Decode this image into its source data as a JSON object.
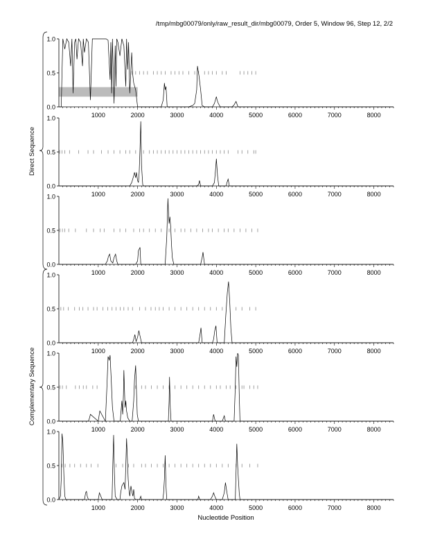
{
  "header": {
    "title": "/tmp/mbg00079/only/raw_result_dir/mbg00079, Order 5, Window 96, Step 12, 2/2"
  },
  "groups": [
    {
      "label": "Direct Sequence"
    },
    {
      "label": "Complementary Sequence"
    }
  ],
  "colors": {
    "line": "#000000",
    "tick": "#888888",
    "highlight": "#bbbbbb",
    "axis": "#000000"
  },
  "chart_data": [
    {
      "type": "line",
      "panel": 1,
      "group": "Direct Sequence",
      "xlabel": "Nucleotide Position",
      "ylabel": "",
      "xlim": [
        0,
        8500
      ],
      "ylim": [
        0,
        1
      ],
      "xticks": [
        "1000",
        "2000",
        "3000",
        "4000",
        "5000",
        "6000",
        "7000",
        "8000"
      ],
      "yticks": [
        "0.0",
        "0.5",
        "1.0"
      ],
      "highlight_band": {
        "x": [
          0,
          2000
        ],
        "y": [
          0.15,
          0.29
        ]
      },
      "gap_ticks": {
        "y": 0.5,
        "positions": [
          1850,
          1950,
          2050,
          2150,
          2250,
          2400,
          2500,
          2600,
          2700,
          2850,
          2950,
          3050,
          3150,
          3300,
          3450,
          3550,
          3700,
          3800,
          3900,
          4000,
          4150,
          4250,
          4600,
          4700,
          4800,
          4900,
          5000
        ]
      },
      "series": [
        {
          "name": "score",
          "x": [
            0,
            60,
            80,
            100,
            150,
            200,
            250,
            300,
            330,
            360,
            400,
            430,
            460,
            500,
            550,
            600,
            620,
            650,
            700,
            750,
            800,
            850,
            900,
            950,
            1000,
            1050,
            1100,
            1150,
            1200,
            1250,
            1300,
            1320,
            1340,
            1360,
            1400,
            1430,
            1450,
            1470,
            1500,
            1550,
            1600,
            1650,
            1700,
            1720,
            1750,
            1770,
            1800,
            1850,
            1870,
            1900,
            1950,
            2000,
            2600,
            2650,
            2680,
            2700,
            2720,
            2750,
            3300,
            3400,
            3450,
            3500,
            3520,
            3560,
            3600,
            3640,
            3700,
            3900,
            3950,
            4000,
            4020,
            4050,
            4100,
            4400,
            4450,
            4500,
            4550,
            8500
          ],
          "values": [
            0,
            0,
            0.5,
            1,
            0.85,
            1,
            0.95,
            0.6,
            1,
            0.2,
            0.95,
            1,
            0.7,
            1,
            0.95,
            0.6,
            1,
            0.8,
            1,
            0.95,
            0.1,
            1,
            1,
            1,
            1,
            1,
            1,
            1,
            1,
            0.98,
            0.4,
            0.95,
            0.2,
            1,
            0.05,
            0.9,
            0.3,
            1,
            0.95,
            0.75,
            1,
            0.9,
            0.3,
            1,
            0.55,
            0.95,
            0.2,
            0.8,
            0.5,
            0.35,
            0.25,
            0,
            0,
            0.1,
            0.35,
            0.25,
            0.3,
            0,
            0,
            0.02,
            0.05,
            0.25,
            0.6,
            0.45,
            0.25,
            0.02,
            0,
            0,
            0.05,
            0.15,
            0.1,
            0.05,
            0,
            0,
            0.03,
            0.08,
            0,
            0
          ]
        }
      ]
    },
    {
      "type": "line",
      "panel": 2,
      "group": "Direct Sequence",
      "xlim": [
        0,
        8500
      ],
      "ylim": [
        0,
        1
      ],
      "xticks": [
        "1000",
        "2000",
        "3000",
        "4000",
        "5000",
        "6000",
        "7000",
        "8000"
      ],
      "yticks": [
        "0.0",
        "0.5",
        "1.0"
      ],
      "gap_ticks": {
        "y": 0.5,
        "positions": [
          20,
          80,
          150,
          270,
          500,
          740,
          880,
          1080,
          1250,
          1400,
          1550,
          1700,
          1800,
          1950,
          2150,
          2300,
          2400,
          2500,
          2600,
          2700,
          2800,
          2900,
          3000,
          3100,
          3200,
          3300,
          3400,
          3500,
          3600,
          3700,
          3800,
          3900,
          4000,
          4100,
          4200,
          4300,
          4550,
          4650,
          4800,
          4950,
          5000
        ]
      },
      "series": [
        {
          "name": "score",
          "x": [
            0,
            1800,
            1850,
            1900,
            1920,
            1950,
            1970,
            2000,
            2020,
            2040,
            2060,
            2080,
            2100,
            2130,
            2150,
            3500,
            3550,
            3570,
            3600,
            3900,
            3950,
            3980,
            4000,
            4030,
            4060,
            4250,
            4270,
            4300,
            4330,
            8500
          ],
          "values": [
            0,
            0,
            0.05,
            0.15,
            0.2,
            0.12,
            0.2,
            0.08,
            0.05,
            0.2,
            0.55,
            0.95,
            0.3,
            0.02,
            0,
            0,
            0.02,
            0.08,
            0,
            0,
            0.05,
            0.25,
            0.4,
            0.15,
            0,
            0,
            0.05,
            0.1,
            0,
            0
          ]
        }
      ]
    },
    {
      "type": "line",
      "panel": 3,
      "group": "Direct Sequence",
      "xlim": [
        0,
        8500
      ],
      "ylim": [
        0,
        1
      ],
      "xticks": [
        "1000",
        "2000",
        "3000",
        "4000",
        "5000",
        "6000",
        "7000",
        "8000"
      ],
      "yticks": [
        "0.0",
        "0.5",
        "1.0"
      ],
      "gap_ticks": {
        "y": 0.5,
        "positions": [
          30,
          90,
          150,
          250,
          420,
          700,
          880,
          1050,
          1150,
          1400,
          1550,
          1700,
          1900,
          2050,
          2150,
          2300,
          2450,
          2600,
          2800,
          2950,
          3100,
          3200,
          3350,
          3500,
          3650,
          3800,
          3900,
          4050,
          4200,
          4300,
          4450,
          4600,
          4750,
          4900,
          5050
        ]
      },
      "series": [
        {
          "name": "score",
          "x": [
            0,
            1180,
            1230,
            1260,
            1290,
            1320,
            1370,
            1400,
            1440,
            1470,
            1500,
            1950,
            2000,
            2020,
            2060,
            2080,
            2700,
            2740,
            2770,
            2780,
            2800,
            2820,
            2840,
            2860,
            2880,
            2920,
            3600,
            3640,
            3660,
            3700,
            8500
          ],
          "values": [
            0,
            0,
            0.05,
            0.12,
            0.15,
            0.05,
            0.02,
            0.1,
            0.15,
            0.05,
            0,
            0,
            0.05,
            0.2,
            0.25,
            0,
            0,
            0.4,
            0.97,
            0.8,
            0.6,
            0.7,
            0.55,
            0.3,
            0.1,
            0,
            0,
            0.1,
            0.18,
            0,
            0
          ]
        }
      ]
    },
    {
      "type": "line",
      "panel": 4,
      "group": "Complementary Sequence",
      "xlim": [
        0,
        8500
      ],
      "ylim": [
        0,
        1
      ],
      "xticks": [
        "1000",
        "2000",
        "3000",
        "4000",
        "5000",
        "6000",
        "7000",
        "8000"
      ],
      "yticks": [
        "0.0",
        "0.5",
        "1.0"
      ],
      "gap_ticks": {
        "y": 0.5,
        "positions": [
          50,
          120,
          240,
          400,
          520,
          610,
          740,
          880,
          970,
          1120,
          1240,
          1350,
          1450,
          1560,
          1650,
          1760,
          1870,
          2050,
          2200,
          2340,
          2450,
          2550,
          2650,
          2800,
          2950,
          3100,
          3250,
          3400,
          3550,
          3700,
          3850,
          4000,
          4150,
          4500,
          4650,
          4850,
          5000
        ]
      },
      "series": [
        {
          "name": "score",
          "x": [
            0,
            1870,
            1900,
            1930,
            1960,
            2000,
            2030,
            2060,
            2100,
            3550,
            3580,
            3610,
            3640,
            3900,
            3930,
            3960,
            3990,
            4020,
            4200,
            4240,
            4280,
            4310,
            4340,
            4370,
            4400,
            8500
          ],
          "values": [
            0,
            0,
            0.05,
            0.12,
            0.02,
            0.08,
            0.18,
            0.1,
            0,
            0,
            0.1,
            0.22,
            0,
            0,
            0.05,
            0.18,
            0.25,
            0,
            0,
            0.4,
            0.75,
            0.9,
            0.6,
            0.2,
            0,
            0
          ]
        }
      ]
    },
    {
      "type": "line",
      "panel": 5,
      "group": "Complementary Sequence",
      "xlim": [
        0,
        8500
      ],
      "ylim": [
        0,
        1
      ],
      "xticks": [
        "1000",
        "2000",
        "3000",
        "4000",
        "5000",
        "6000",
        "7000",
        "8000"
      ],
      "yticks": [
        "0.0",
        "0.5",
        "1.0"
      ],
      "gap_ticks": {
        "y": 0.5,
        "positions": [
          30,
          90,
          190,
          420,
          520,
          620,
          700,
          860,
          970,
          1950,
          2100,
          2200,
          2350,
          2500,
          2650,
          2800,
          2950,
          3100,
          3250,
          3400,
          3550,
          3700,
          3850,
          4000,
          4100,
          4250,
          4350,
          4500,
          4650,
          4700,
          4850,
          4950,
          5050
        ]
      },
      "series": [
        {
          "name": "score",
          "x": [
            0,
            750,
            780,
            800,
            1000,
            1020,
            1040,
            1180,
            1220,
            1250,
            1280,
            1300,
            1330,
            1360,
            1400,
            1560,
            1600,
            1620,
            1640,
            1650,
            1680,
            1700,
            1720,
            1750,
            1800,
            1860,
            1900,
            1920,
            1950,
            1990,
            2020,
            2780,
            2800,
            2810,
            2830,
            2850,
            3900,
            3930,
            3970,
            4150,
            4200,
            4230,
            4450,
            4480,
            4500,
            4520,
            4540,
            4560,
            4580,
            4600,
            8500
          ],
          "values": [
            0,
            0,
            0.05,
            0.1,
            0,
            0.08,
            0.15,
            0,
            0.5,
            0.95,
            0.9,
            0.97,
            0.6,
            0.2,
            0,
            0,
            0.3,
            0.1,
            0.4,
            0.75,
            0.2,
            0.3,
            0.15,
            0.05,
            0,
            0,
            0.3,
            0.6,
            0.82,
            0.1,
            0,
            0,
            0.3,
            0.65,
            0.2,
            0,
            0,
            0.1,
            0,
            0,
            0.08,
            0,
            0,
            0.5,
            0.95,
            0.8,
            1,
            0.97,
            0.4,
            0,
            0
          ]
        }
      ]
    },
    {
      "type": "line",
      "panel": 6,
      "group": "Complementary Sequence",
      "xlim": [
        0,
        8500
      ],
      "ylim": [
        0,
        1
      ],
      "xticks": [
        "1000",
        "2000",
        "3000",
        "4000",
        "5000",
        "6000",
        "7000",
        "8000"
      ],
      "yticks": [
        "0.0",
        "0.5",
        "1.0"
      ],
      "gap_ticks": {
        "y": 0.5,
        "positions": [
          80,
          160,
          280,
          400,
          550,
          700,
          820,
          990,
          1450,
          1620,
          1770,
          1900,
          2100,
          2200,
          2350,
          2500,
          2650,
          2800,
          2950,
          3100,
          3250,
          3400,
          3550,
          3700,
          3850,
          4000,
          4150,
          4300,
          4500,
          4650,
          4850,
          5050
        ]
      },
      "series": [
        {
          "name": "score",
          "x": [
            0,
            40,
            60,
            80,
            100,
            130,
            150,
            180,
            200,
            650,
            680,
            700,
            720,
            750,
            1000,
            1030,
            1100,
            1350,
            1370,
            1390,
            1410,
            1430,
            1480,
            1550,
            1570,
            1600,
            1650,
            1680,
            1700,
            1720,
            1740,
            1760,
            1780,
            1800,
            1830,
            1860,
            1880,
            1900,
            1920,
            1950,
            2050,
            2080,
            2100,
            2640,
            2660,
            2680,
            2700,
            2720,
            2740,
            3530,
            3550,
            3580,
            3850,
            3900,
            3930,
            3960,
            4000,
            4150,
            4200,
            4230,
            4270,
            4300,
            4480,
            4500,
            4520,
            4540,
            4560,
            4580,
            4600,
            8500
          ],
          "values": [
            0,
            0.05,
            0.3,
            0.97,
            0.85,
            0.3,
            0.05,
            0,
            0,
            0,
            0.1,
            0.12,
            0.05,
            0,
            0,
            0.1,
            0,
            0,
            0.5,
            0.95,
            0.4,
            0.05,
            0,
            0,
            0.1,
            0.2,
            0.25,
            0.15,
            0.5,
            0.9,
            0.6,
            0.3,
            0.15,
            0.05,
            0.2,
            0.1,
            0.05,
            0.15,
            0.02,
            0,
            0,
            0.05,
            0,
            0,
            0.1,
            0.3,
            0.65,
            0.2,
            0,
            0,
            0.05,
            0,
            0,
            0.05,
            0.1,
            0.05,
            0,
            0,
            0.1,
            0.25,
            0.1,
            0,
            0,
            0.4,
            0.82,
            0.5,
            0.3,
            0.1,
            0,
            0
          ]
        }
      ]
    }
  ]
}
